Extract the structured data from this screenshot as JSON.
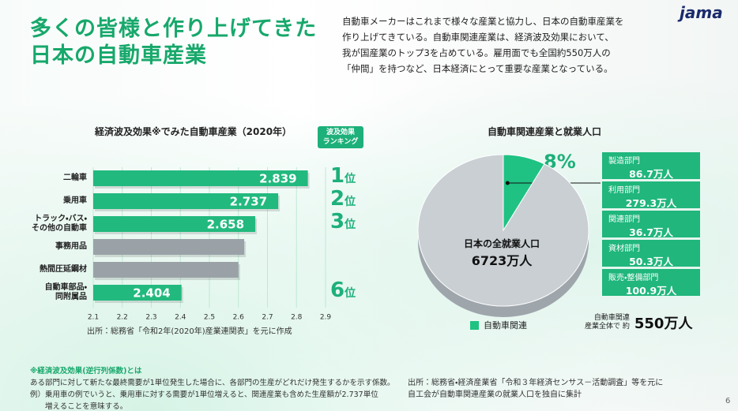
{
  "logo": "jama",
  "header": {
    "title_lines": [
      "多くの皆様と作り上げてきた",
      "日本の自動車産業"
    ]
  },
  "description": [
    "自動車メーカーはこれまで様々な産業と協力し、日本の自動車産業を",
    "作り上げてきている。自動車関連産業は、経済波及効果において、",
    "我が国産業のトップ3を占めている。雇用面でも全国約550万人の",
    "「仲間」を持つなど、日本経済にとって重要な産業となっている。"
  ],
  "chart_data": [
    {
      "type": "bar",
      "title": "経済波及効果※でみた自動車産業（2020年）",
      "categories": [
        "二輪車",
        "乗用車",
        "トラック・バス・\nその他の自動車",
        "事務用品",
        "熱間圧延鋼材",
        "自動車部品・\n同附属品"
      ],
      "values": [
        2.839,
        2.737,
        2.658,
        2.62,
        2.6,
        2.404
      ],
      "value_labels": [
        "2.839",
        "2.737",
        "2.658",
        null,
        null,
        "2.404"
      ],
      "colors": [
        "#22b97e",
        "#22b97e",
        "#22b97e",
        "#9aa2a8",
        "#9aa2a8",
        "#22b97e"
      ],
      "xlim": [
        2.1,
        2.9
      ],
      "xticks": [
        2.1,
        2.2,
        2.3,
        2.4,
        2.5,
        2.6,
        2.7,
        2.8,
        2.9
      ],
      "grid": true,
      "ranking_title": "波及効果\nランキング",
      "rankings": [
        1,
        2,
        3,
        null,
        null,
        6
      ],
      "ranking_unit": "位",
      "source": "出所：総務省「令和2年(2020年)産業連関表」を元に作成"
    },
    {
      "type": "pie",
      "title": "自動車関連産業と就業人口",
      "categories": [
        "自動車関連",
        null
      ],
      "values": [
        8,
        92
      ],
      "value_labels": [
        "8%",
        null
      ],
      "colors": [
        "#1fc283",
        "#c9cfd3"
      ],
      "legend": true,
      "center_label": "日本の全就業人口",
      "center_value": "6723万人"
    }
  ],
  "breakdown": [
    {
      "label": "製造部門",
      "value": "86.7万人"
    },
    {
      "label": "利用部門",
      "value": "279.3万人"
    },
    {
      "label": "関連部門",
      "value": "36.7万人"
    },
    {
      "label": "資材部門",
      "value": "50.3万人"
    },
    {
      "label": "販売・整備部門",
      "value": "100.9万人"
    }
  ],
  "total": {
    "label": "自動車関連\n産業全体で 約",
    "value": "550万人"
  },
  "notes": {
    "title": "※経済波及効果(逆行列係数)とは",
    "lines": [
      "ある部門に対して新たな最終需要が1単位発生した場合に、各部門の生産がどれだけ発生するかを示す係数。",
      "例）乗用車の例でいうと、乗用車に対する需要が1単位増えると、関連産業も含めた生産額が2.737単位",
      "　　増えることを意味する。"
    ]
  },
  "source_right": [
    "出所：総務省・経済産業省「令和３年経済センサス－活動調査」等を元に",
    "自工会が自動車関連産業の就業人口を独自に集計"
  ],
  "page_number": "6"
}
